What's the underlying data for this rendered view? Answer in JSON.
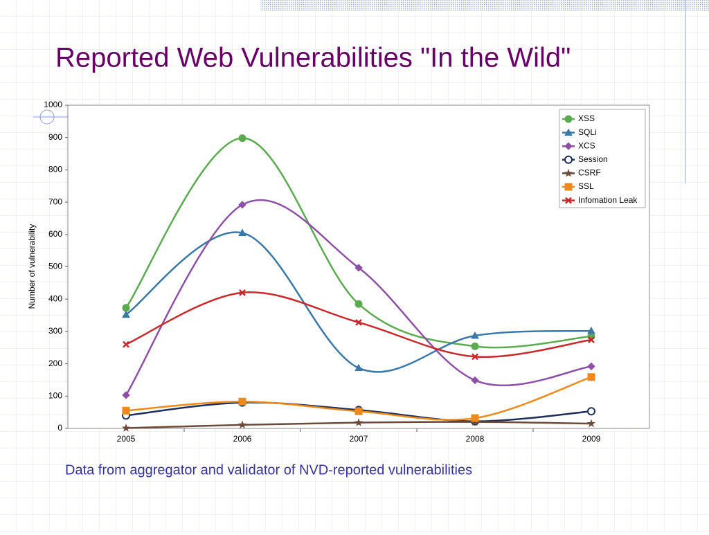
{
  "title": "Reported Web Vulnerabilities \"In the Wild\"",
  "caption": "Data from aggregator and validator of NVD-reported vulnerabilities",
  "chart_data": {
    "type": "line",
    "y_label": "Number of vulnerability",
    "categories": [
      "2005",
      "2006",
      "2007",
      "2008",
      "2009"
    ],
    "series": [
      {
        "name": "XSS",
        "color": "#5aab4f",
        "values": [
          373,
          898,
          385,
          254,
          285
        ]
      },
      {
        "name": "SQLi",
        "color": "#3a78a8",
        "values": [
          352,
          605,
          187,
          287,
          302
        ]
      },
      {
        "name": "XCS",
        "color": "#8e4fa6",
        "values": [
          103,
          692,
          497,
          149,
          192
        ]
      },
      {
        "name": "Session",
        "color": "#1c2e5c",
        "values": [
          40,
          80,
          57,
          22,
          53
        ]
      },
      {
        "name": "CSRF",
        "color": "#6b4a3a",
        "values": [
          1,
          11,
          18,
          20,
          15
        ]
      },
      {
        "name": "SSL",
        "color": "#ee8a1a",
        "values": [
          55,
          83,
          53,
          32,
          159
        ]
      },
      {
        "name": "Infomation Leak",
        "color": "#c8282a",
        "values": [
          260,
          420,
          328,
          222,
          274
        ]
      }
    ],
    "ylim": [
      0,
      1000
    ],
    "yticks": [
      0,
      100,
      200,
      300,
      400,
      500,
      600,
      700,
      800,
      900,
      1000
    ],
    "legend": "upper right"
  }
}
